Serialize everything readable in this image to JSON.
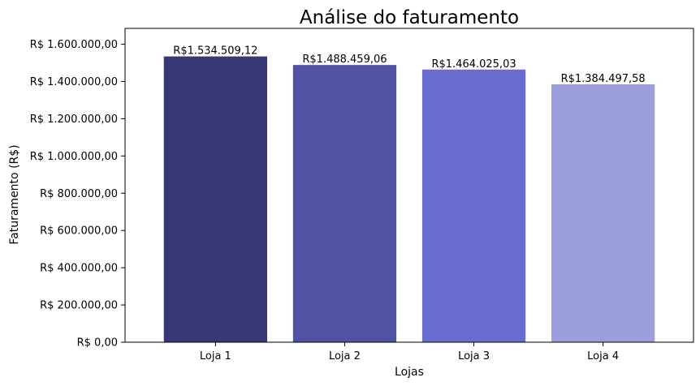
{
  "chart_data": {
    "type": "bar",
    "title": "Análise do faturamento",
    "xlabel": "Lojas",
    "ylabel": "Faturamento (R$)",
    "categories": [
      "Loja 1",
      "Loja 2",
      "Loja 3",
      "Loja 4"
    ],
    "values": [
      1534509.12,
      1488459.06,
      1464025.03,
      1384497.58
    ],
    "data_labels": [
      "R$1.534.509,12",
      "R$1.488.459,06",
      "R$1.464.025,03",
      "R$1.384.497,58"
    ],
    "bar_colors": [
      "#383874",
      "#5053a4",
      "#6b6ccf",
      "#9c9edc"
    ],
    "ylim": [
      0,
      1685000
    ],
    "yticks": [
      0,
      200000,
      400000,
      600000,
      800000,
      1000000,
      1200000,
      1400000,
      1600000
    ],
    "ytick_labels": [
      "R$ 0,00",
      "R$ 200.000,00",
      "R$ 400.000,00",
      "R$ 600.000,00",
      "R$ 800.000,00",
      "R$ 1.000.000,00",
      "R$ 1.200.000,00",
      "R$ 1.400.000,00",
      "R$ 1.600.000,00"
    ],
    "grid": false,
    "legend": false
  }
}
